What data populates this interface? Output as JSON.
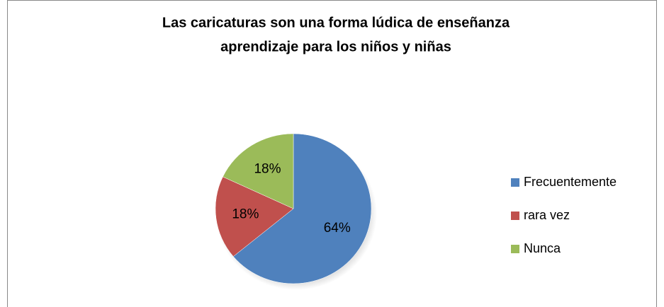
{
  "chart_data": {
    "type": "pie",
    "title": [
      "Las caricaturas son una forma lúdica de enseñanza",
      "aprendizaje para los niños y niñas"
    ],
    "categories": [
      "Frecuentemente",
      "rara vez",
      "Nunca"
    ],
    "values": [
      64,
      18,
      18
    ],
    "value_labels": [
      "64%",
      "18%",
      "18%"
    ],
    "colors": [
      "#4f81bd",
      "#c0504d",
      "#9bbb59"
    ],
    "legend": "right"
  }
}
